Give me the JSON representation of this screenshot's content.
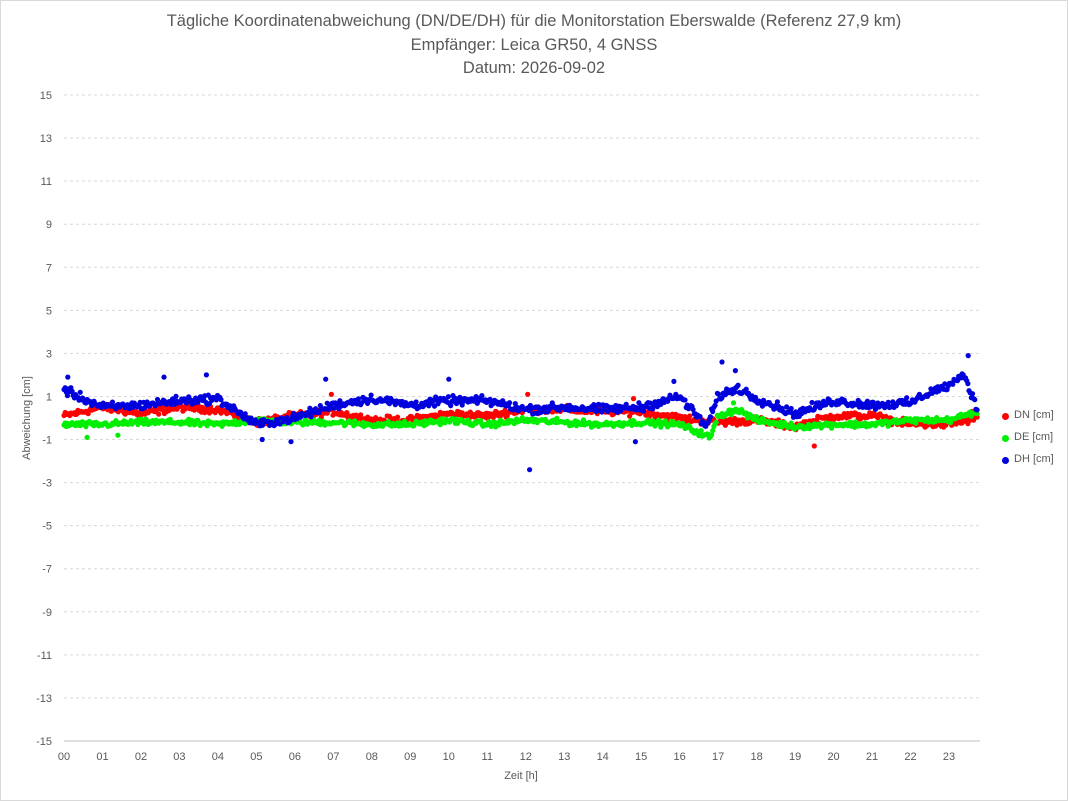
{
  "chart_data": {
    "type": "scatter",
    "title": "Tägliche Koordinatenabweichung (DN/DE/DH) für die Monitorstation Eberswalde (Referenz 27,9 km)",
    "subtitle": "Empfänger: Leica GR50, 4 GNSS",
    "date_line": "Datum: 2026-09-02",
    "xlabel": "Zeit [h]",
    "ylabel": "Abweichung [cm]",
    "xlim": [
      0,
      23.75
    ],
    "ylim": [
      -15,
      15
    ],
    "x_ticks": [
      "00",
      "01",
      "02",
      "03",
      "04",
      "05",
      "06",
      "07",
      "08",
      "09",
      "10",
      "11",
      "12",
      "13",
      "14",
      "15",
      "16",
      "17",
      "18",
      "19",
      "20",
      "21",
      "22",
      "23"
    ],
    "y_ticks": [
      "15",
      "13",
      "11",
      "9",
      "7",
      "5",
      "3",
      "1",
      "-1",
      "-3",
      "-5",
      "-7",
      "-9",
      "-11",
      "-13",
      "-15"
    ],
    "grid": "horizontal dashed",
    "legend_position": "right",
    "sampling_interval_h": 0.03,
    "series": [
      {
        "name": "DN [cm]",
        "color": "#ff0000",
        "anchors": [
          [
            0,
            0.1
          ],
          [
            1,
            0.5
          ],
          [
            2,
            0.2
          ],
          [
            3,
            0.5
          ],
          [
            4,
            0.4
          ],
          [
            5,
            -0.2
          ],
          [
            6,
            0.1
          ],
          [
            7,
            0.3
          ],
          [
            8,
            -0.1
          ],
          [
            9,
            -0.1
          ],
          [
            10,
            0.2
          ],
          [
            11,
            0.1
          ],
          [
            12,
            0.4
          ],
          [
            13,
            0.4
          ],
          [
            14,
            0.3
          ],
          [
            15,
            0.3
          ],
          [
            16,
            0.0
          ],
          [
            17,
            -0.2
          ],
          [
            18,
            -0.1
          ],
          [
            19,
            -0.4
          ],
          [
            20,
            0.1
          ],
          [
            21,
            0.1
          ],
          [
            22,
            -0.3
          ],
          [
            23,
            -0.3
          ],
          [
            23.75,
            0.0
          ]
        ],
        "noise": 0.25,
        "outliers": [
          [
            6.95,
            1.1
          ],
          [
            12.05,
            1.1
          ],
          [
            14.8,
            0.9
          ],
          [
            19.5,
            -1.3
          ],
          [
            23.6,
            0.3
          ]
        ]
      },
      {
        "name": "DE [cm]",
        "color": "#00ee00",
        "anchors": [
          [
            0,
            -0.3
          ],
          [
            1,
            -0.3
          ],
          [
            2,
            -0.2
          ],
          [
            3,
            -0.2
          ],
          [
            4,
            -0.3
          ],
          [
            5,
            -0.1
          ],
          [
            6,
            -0.2
          ],
          [
            7,
            -0.2
          ],
          [
            8,
            -0.3
          ],
          [
            9,
            -0.3
          ],
          [
            10,
            -0.1
          ],
          [
            11,
            -0.3
          ],
          [
            12,
            -0.1
          ],
          [
            13,
            -0.2
          ],
          [
            14,
            -0.3
          ],
          [
            15,
            -0.2
          ],
          [
            16,
            -0.3
          ],
          [
            16.8,
            -0.9
          ],
          [
            17,
            0.1
          ],
          [
            17.5,
            0.4
          ],
          [
            18,
            -0.1
          ],
          [
            19,
            -0.4
          ],
          [
            20,
            -0.3
          ],
          [
            21,
            -0.3
          ],
          [
            22,
            -0.1
          ],
          [
            23,
            -0.1
          ],
          [
            23.75,
            0.3
          ]
        ],
        "noise": 0.2,
        "outliers": [
          [
            0.6,
            -0.9
          ],
          [
            1.4,
            -0.8
          ],
          [
            17.4,
            0.7
          ]
        ]
      },
      {
        "name": "DH [cm]",
        "color": "#0000dd",
        "anchors": [
          [
            0,
            1.3
          ],
          [
            1,
            0.5
          ],
          [
            2,
            0.6
          ],
          [
            3,
            0.8
          ],
          [
            4,
            0.9
          ],
          [
            5,
            -0.3
          ],
          [
            6,
            0.0
          ],
          [
            7,
            0.6
          ],
          [
            8,
            0.9
          ],
          [
            9,
            0.6
          ],
          [
            10,
            0.8
          ],
          [
            11,
            0.8
          ],
          [
            12,
            0.4
          ],
          [
            13,
            0.5
          ],
          [
            14,
            0.4
          ],
          [
            15,
            0.5
          ],
          [
            16,
            1.0
          ],
          [
            16.7,
            -0.4
          ],
          [
            17,
            1.0
          ],
          [
            17.5,
            1.4
          ],
          [
            18,
            0.9
          ],
          [
            19,
            0.2
          ],
          [
            20,
            0.8
          ],
          [
            21,
            0.6
          ],
          [
            22,
            0.7
          ],
          [
            22.5,
            1.2
          ],
          [
            23,
            1.5
          ],
          [
            23.4,
            2.0
          ],
          [
            23.75,
            0.3
          ]
        ],
        "noise": 0.3,
        "outliers": [
          [
            0.1,
            1.9
          ],
          [
            2.6,
            1.9
          ],
          [
            3.7,
            2.0
          ],
          [
            6.8,
            1.8
          ],
          [
            10.0,
            1.8
          ],
          [
            12.1,
            -2.4
          ],
          [
            15.85,
            1.7
          ],
          [
            17.1,
            2.6
          ],
          [
            17.45,
            2.2
          ],
          [
            23.5,
            2.9
          ],
          [
            5.15,
            -1.0
          ],
          [
            5.9,
            -1.1
          ],
          [
            14.85,
            -1.1
          ]
        ]
      }
    ]
  }
}
